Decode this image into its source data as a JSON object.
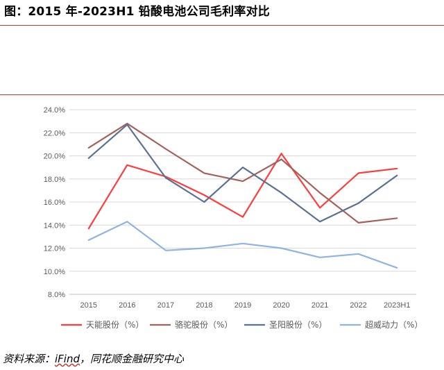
{
  "title": "图：2015 年-2023H1 铅酸电池公司毛利率对比",
  "source": {
    "prefix": "资料来源：",
    "app": "iFind",
    "suffix": "，同花顺金融研究中心"
  },
  "colors": {
    "rule": "#c0392b",
    "grid": "#d9d9d9",
    "axis": "#bfbfbf",
    "tick_text": "#595959"
  },
  "chart_data": {
    "type": "line",
    "title": "",
    "xlabel": "",
    "ylabel": "",
    "categories": [
      "2015",
      "2016",
      "2017",
      "2018",
      "2019",
      "2020",
      "2021",
      "2022",
      "2023H1"
    ],
    "ylim": [
      8.0,
      24.0
    ],
    "yticks": [
      8.0,
      10.0,
      12.0,
      14.0,
      16.0,
      18.0,
      20.0,
      22.0,
      24.0
    ],
    "ytick_labels": [
      "8.0%",
      "10.0%",
      "12.0%",
      "14.0%",
      "16.0%",
      "18.0%",
      "20.0%",
      "22.0%",
      "24.0%"
    ],
    "grid": true,
    "legend_position": "bottom",
    "series": [
      {
        "name": "天能股份（%）",
        "color": "#ff3b3b",
        "values": [
          13.7,
          19.2,
          18.2,
          16.6,
          14.7,
          20.2,
          15.5,
          18.5,
          18.9
        ]
      },
      {
        "name": "骆驼股份（%）",
        "color": "#a5605a",
        "values": [
          20.7,
          22.8,
          20.6,
          18.5,
          17.8,
          19.7,
          16.8,
          14.2,
          14.6
        ]
      },
      {
        "name": "圣阳股份（%）",
        "color": "#5a7194",
        "values": [
          19.8,
          22.7,
          18.1,
          16.0,
          19.0,
          16.8,
          14.3,
          15.9,
          18.3
        ]
      },
      {
        "name": "超威动力（%）",
        "color": "#8fb3e3",
        "values": [
          12.7,
          14.3,
          11.8,
          12.0,
          12.4,
          12.0,
          11.2,
          11.5,
          10.3
        ]
      }
    ]
  }
}
